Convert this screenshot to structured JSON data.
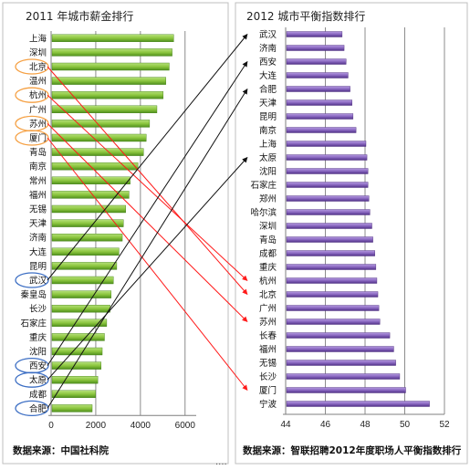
{
  "colors": {
    "left_bar": "#8cc63f",
    "left_bar_dark": "#3f7d14",
    "right_bar": "#8a68c0",
    "right_bar_dark": "#4a2a7a",
    "arrow_red": "#ff1a1a",
    "arrow_black": "#111111",
    "circle_orange": "#f5a043",
    "circle_blue": "#3d6fc4"
  },
  "footer": {
    "dots": "...."
  },
  "chart_data": [
    {
      "type": "bar",
      "orientation": "horizontal",
      "title": "2011 年城市薪金排行",
      "source": "数据来源：中国社科院",
      "categories": [
        "上海",
        "深圳",
        "北京",
        "温州",
        "杭州",
        "广州",
        "苏州",
        "厦门",
        "青岛",
        "南京",
        "常州",
        "福州",
        "无锡",
        "天津",
        "济南",
        "大连",
        "昆明",
        "武汉",
        "秦皇岛",
        "长沙",
        "石家庄",
        "重庆",
        "沈阳",
        "西安",
        "太原",
        "成都",
        "合肥"
      ],
      "values": [
        5450,
        5380,
        5250,
        5100,
        4980,
        4700,
        4370,
        4220,
        4100,
        3850,
        3500,
        3450,
        3300,
        3200,
        3150,
        3000,
        2900,
        2750,
        2650,
        2600,
        2450,
        2350,
        2250,
        2200,
        2050,
        1950,
        1800
      ],
      "xlim": [
        0,
        6500
      ],
      "xticks": [
        0,
        2000,
        4000,
        6000
      ],
      "grid": true,
      "circled_orange": [
        "北京",
        "杭州",
        "苏州",
        "厦门"
      ],
      "circled_blue": [
        "武汉",
        "西安",
        "太原",
        "合肥"
      ]
    },
    {
      "type": "bar",
      "orientation": "horizontal",
      "title": "2012 城市平衡指数排行",
      "source": "数据来源：智联招聘2012年度职场人平衡指数排行",
      "categories": [
        "武汉",
        "济南",
        "西安",
        "大连",
        "合肥",
        "天津",
        "昆明",
        "南京",
        "上海",
        "太原",
        "沈阳",
        "石家庄",
        "郑州",
        "哈尔滨",
        "深圳",
        "青岛",
        "成都",
        "重庆",
        "杭州",
        "北京",
        "广州",
        "苏州",
        "长春",
        "福州",
        "无锡",
        "长沙",
        "厦门",
        "宁波"
      ],
      "values": [
        46.8,
        46.9,
        47.0,
        47.1,
        47.2,
        47.3,
        47.35,
        47.5,
        48.0,
        48.05,
        48.1,
        48.1,
        48.15,
        48.2,
        48.3,
        48.35,
        48.45,
        48.5,
        48.55,
        48.6,
        48.65,
        48.7,
        49.2,
        49.4,
        49.5,
        49.7,
        50.0,
        51.2
      ],
      "xlim": [
        44,
        52
      ],
      "xticks": [
        44,
        46,
        48,
        50,
        52
      ],
      "grid": true
    }
  ],
  "arrows": [
    {
      "from": "北京",
      "to": "北京",
      "color": "red"
    },
    {
      "from": "杭州",
      "to": "杭州",
      "color": "red"
    },
    {
      "from": "苏州",
      "to": "苏州",
      "color": "red"
    },
    {
      "from": "厦门",
      "to": "厦门",
      "color": "red"
    },
    {
      "from": "武汉",
      "to": "武汉",
      "color": "black"
    },
    {
      "from": "西安",
      "to": "西安",
      "color": "black"
    },
    {
      "from": "太原",
      "to": "太原",
      "color": "black"
    },
    {
      "from": "合肥",
      "to": "合肥",
      "color": "black"
    }
  ]
}
